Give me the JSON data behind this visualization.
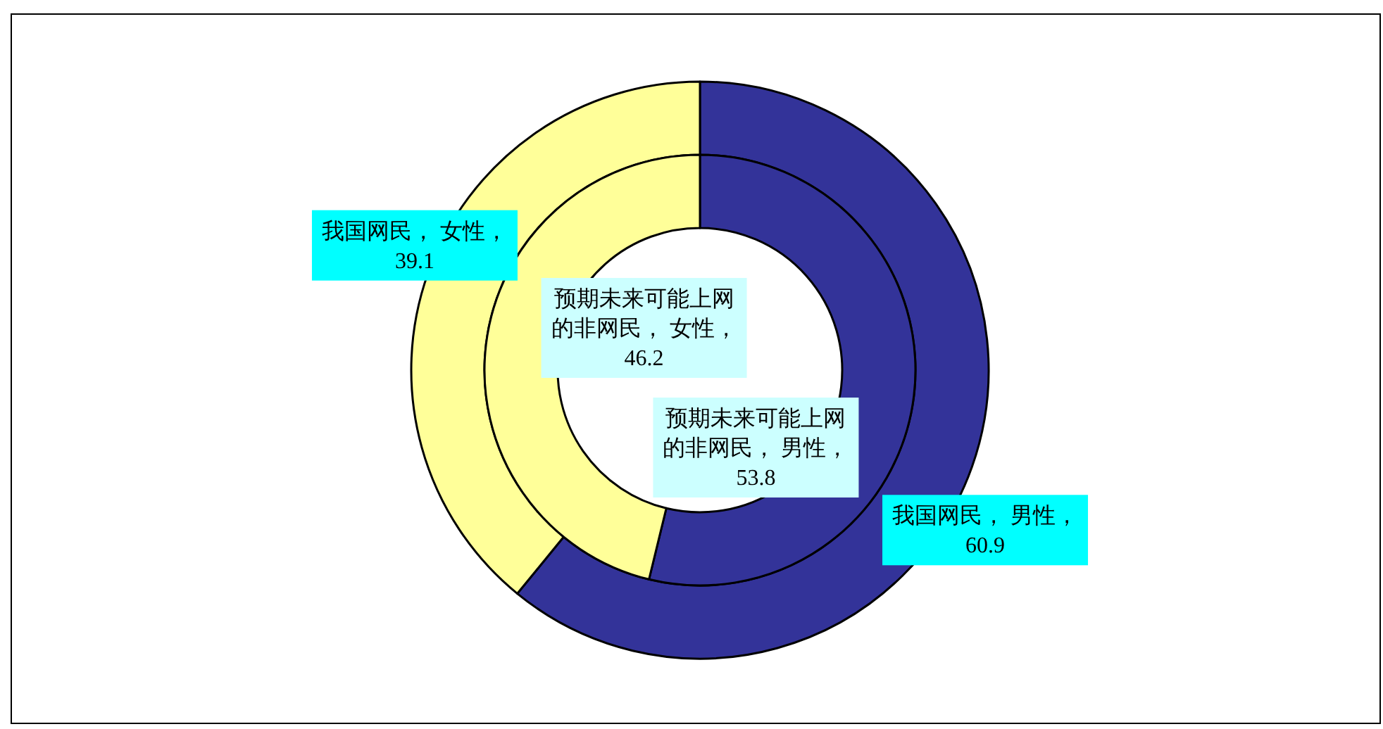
{
  "chart_data": {
    "type": "donut",
    "categories": [
      null,
      null
    ],
    "colors": [
      "#333399",
      "#ffff99"
    ],
    "series": [
      {
        "values": [
          60.9,
          39.1
        ],
        "value_labels": [
          "我国网民， 男性，\n60.9",
          "我国网民， 女性，\n39.1"
        ]
      },
      {
        "values": [
          53.8,
          46.2
        ],
        "value_labels": [
          "预期未来可能上网的非网民， 男性，\n53.8",
          "预期未来可能上网的非网民， 女性，\n46.2"
        ]
      }
    ]
  }
}
